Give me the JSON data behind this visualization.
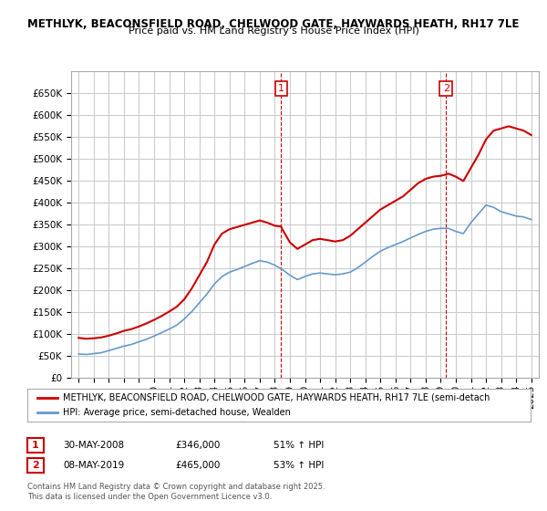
{
  "title1": "METHLYK, BEACONSFIELD ROAD, CHELWOOD GATE, HAYWARDS HEATH, RH17 7LE",
  "title2": "Price paid vs. HM Land Registry's House Price Index (HPI)",
  "ylabel": "",
  "bg_color": "#ffffff",
  "plot_bg_color": "#ffffff",
  "grid_color": "#cccccc",
  "red_color": "#cc0000",
  "blue_color": "#6699cc",
  "marker1_year": 2008.42,
  "marker2_year": 2019.36,
  "marker1_label": "1",
  "marker2_label": "2",
  "annotation1": [
    "1",
    "30-MAY-2008",
    "£346,000",
    "51% ↑ HPI"
  ],
  "annotation2": [
    "2",
    "08-MAY-2019",
    "£465,000",
    "53% ↑ HPI"
  ],
  "legend1": "METHLYK, BEACONSFIELD ROAD, CHELWOOD GATE, HAYWARDS HEATH, RH17 7LE (semi-detach",
  "legend2": "HPI: Average price, semi-detached house, Wealden",
  "footer": "Contains HM Land Registry data © Crown copyright and database right 2025.\nThis data is licensed under the Open Government Licence v3.0.",
  "ylim": [
    0,
    700000
  ],
  "yticks": [
    0,
    50000,
    100000,
    150000,
    200000,
    250000,
    300000,
    350000,
    400000,
    450000,
    500000,
    550000,
    600000,
    650000
  ],
  "xlim_start": 1994.5,
  "xlim_end": 2025.5
}
